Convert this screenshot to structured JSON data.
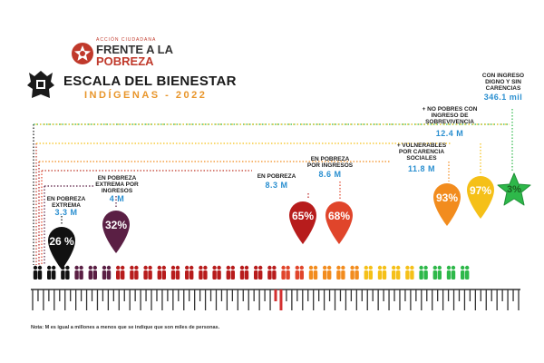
{
  "logo": {
    "small_text": "ACCIÓN CIUDADANA",
    "line1": "FRENTE A LA",
    "line2": "POBREZA",
    "icon": "star-logo-icon"
  },
  "header": {
    "crest_icon": "crest-icon",
    "title": "ESCALA DEL BIENESTAR",
    "subtitle": "INDÍGENAS - 2022"
  },
  "categories": [
    {
      "label": "EN POBREZA EXTREMA",
      "value": "3.3 M",
      "percent": "26 %",
      "color": "#111111"
    },
    {
      "label": "EN POBREZA EXTREMA POR INGRESOS",
      "value": "4 M",
      "percent": "32%",
      "color": "#5a1f44"
    },
    {
      "label": "EN POBREZA",
      "value": "8.3 M",
      "percent": "65%",
      "color": "#b71c1c"
    },
    {
      "label": "EN POBREZA POR INGRESOS",
      "value": "8.6 M",
      "percent": "68%",
      "color": "#e0452b"
    },
    {
      "label": "+ VULNERABLES POR CARENCIA SOCIALES",
      "value": "11.8 M",
      "percent": "93%",
      "color": "#f28c1e"
    },
    {
      "label": "+ NO POBRES CON INGRESO DE SOBREVIVENCIA",
      "value": "12.4 M",
      "percent": "97%",
      "color": "#f5c018"
    },
    {
      "label": "CON INGRESO DIGNO Y SIN CARENCIAS",
      "value": "346.1 mil",
      "percent": "3%",
      "color": "#2eb84a"
    }
  ],
  "note": "Nota: M es igual a millones a menos que se indique que son miles de personas."
}
